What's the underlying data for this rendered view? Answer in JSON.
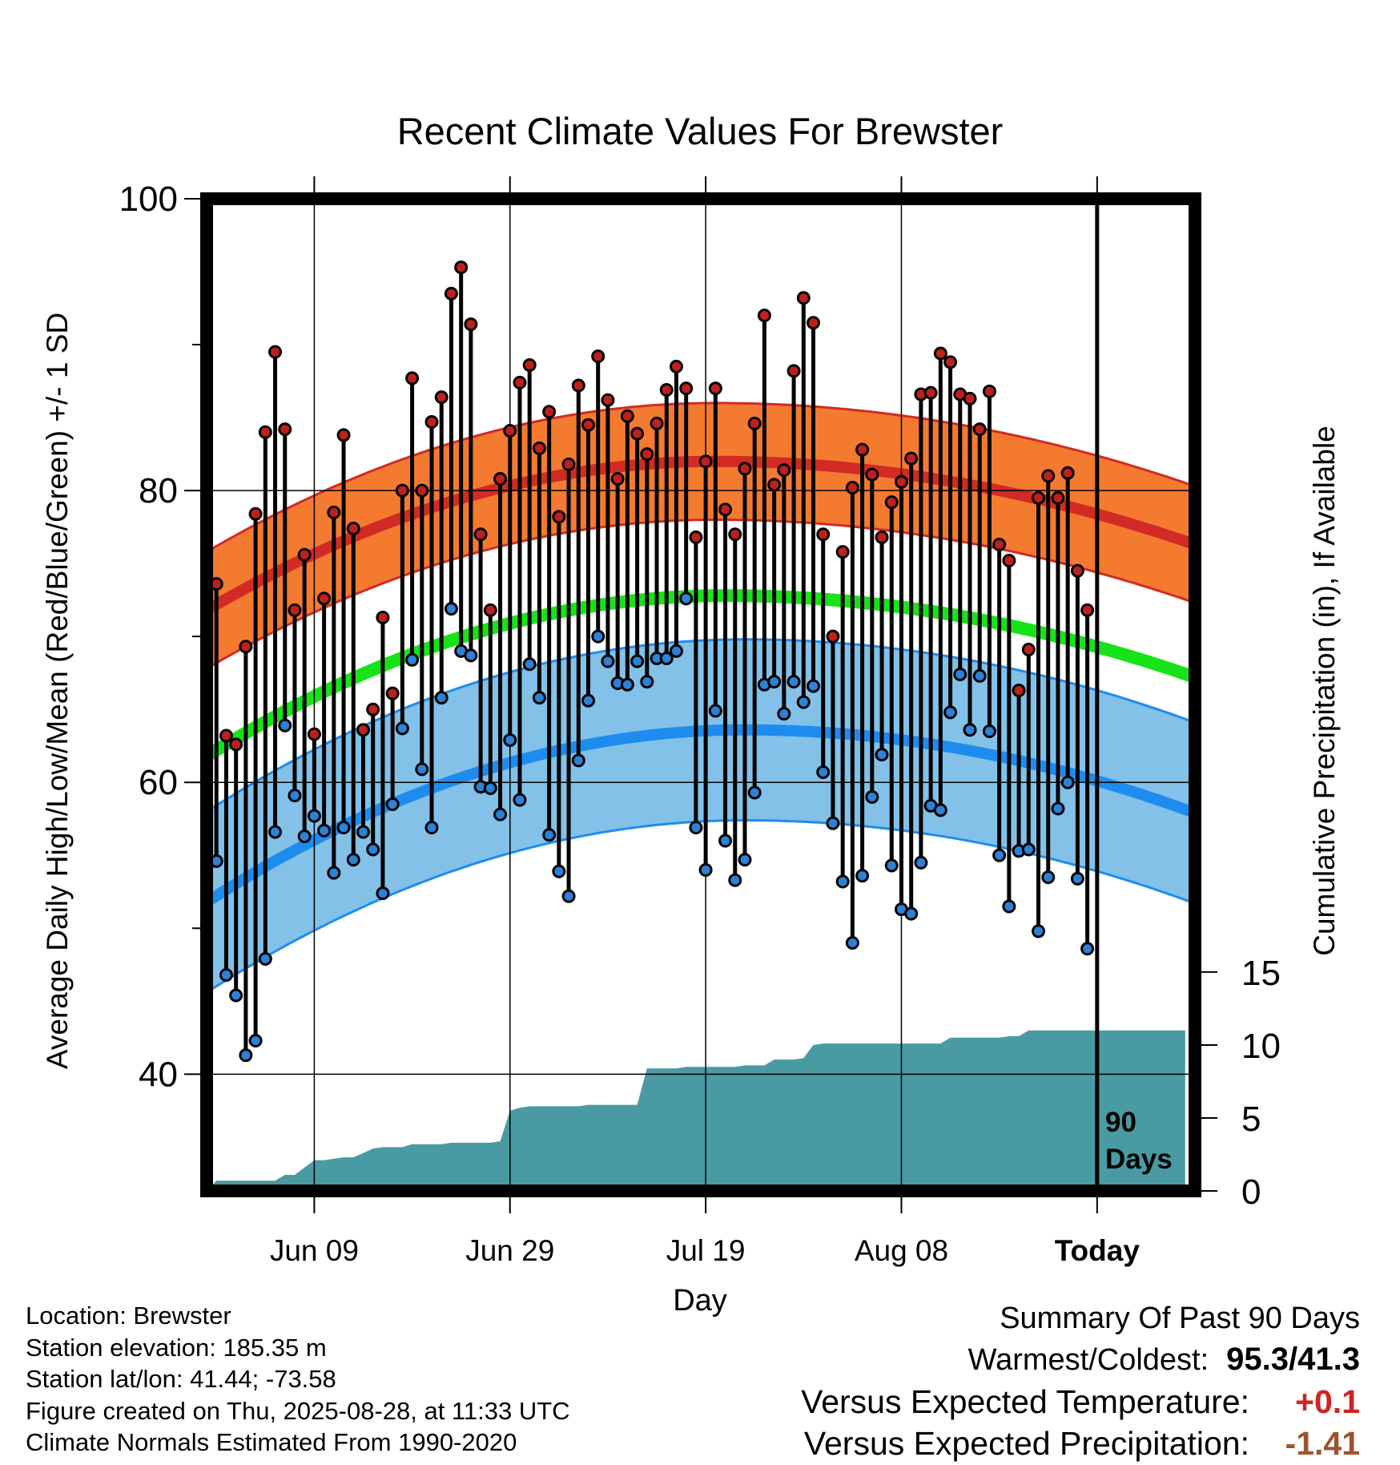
{
  "chart_data": {
    "type": "line",
    "title": "Recent Climate Values For Brewster",
    "xlabel": "Day",
    "ylabel": "Average Daily High/Low/Mean (Red/Blue/Green) +/- 1 SD",
    "y2label": "Cumulative Precipitation (in), If Available",
    "ylim": [
      32,
      100
    ],
    "y2lim": [
      0,
      68
    ],
    "yticks": [
      "40",
      "60",
      "80",
      "100"
    ],
    "y2ticks": [
      "0",
      "5",
      "10",
      "15"
    ],
    "xticks": [
      "Jun 09",
      "Jun 29",
      "Jul 19",
      "Aug 08",
      "Today"
    ],
    "xtick_days": [
      11,
      31,
      51,
      71,
      91
    ],
    "xlim": [
      0,
      101
    ],
    "grid": true,
    "marker_label": "90 Days",
    "colors": {
      "high_band": "#f47a30",
      "high_line": "#d22a24",
      "low_band": "#83c1e8",
      "low_line": "#1e8cef",
      "mean_line": "#18e318",
      "precip": "#4a9aa3",
      "high_dot": "#c0201c",
      "low_dot": "#2b82d6"
    },
    "normals": {
      "mean_high": {
        "day0": 71.8,
        "peak": 82.0,
        "peak_day": 52,
        "day101": 76.3
      },
      "high_sd": 4.0,
      "mean_low": {
        "day0": 51.8,
        "peak": 63.6,
        "peak_day": 55,
        "day101": 57.9
      },
      "low_sd": 6.2,
      "mean": {
        "day0": 61.8,
        "peak": 72.8,
        "peak_day": 53,
        "day101": 67.2
      }
    },
    "series": [
      {
        "name": "High",
        "values": [
          73.6,
          63.2,
          62.6,
          69.3,
          78.4,
          84.0,
          89.5,
          84.2,
          71.8,
          75.6,
          63.3,
          72.6,
          78.5,
          83.8,
          77.4,
          63.6,
          65.0,
          71.3,
          66.1,
          80.0,
          87.7,
          80.0,
          84.7,
          86.4,
          93.5,
          95.3,
          91.4,
          77.0,
          71.8,
          80.8,
          84.1,
          87.4,
          88.6,
          82.9,
          85.4,
          78.2,
          81.8,
          87.2,
          84.5,
          89.2,
          86.2,
          80.8,
          85.1,
          83.9,
          82.5,
          84.6,
          86.9,
          88.5,
          87.0,
          76.8,
          82.0,
          87.0,
          78.7,
          77.0,
          81.5,
          84.6,
          92.0,
          80.4,
          81.4,
          88.2,
          93.2,
          91.5,
          77.0,
          70.0,
          75.8,
          80.2,
          82.8,
          81.1,
          76.8,
          79.2,
          80.6,
          82.2,
          86.6,
          86.7,
          89.4,
          88.8,
          86.6,
          86.3,
          84.2,
          86.8,
          76.3,
          75.2,
          66.3,
          69.1,
          79.5,
          81.0,
          79.5,
          81.2,
          74.5,
          71.8
        ]
      },
      {
        "name": "Low",
        "values": [
          54.6,
          46.8,
          45.4,
          41.3,
          42.3,
          47.9,
          56.6,
          63.9,
          59.1,
          56.3,
          57.7,
          56.7,
          53.8,
          56.9,
          54.7,
          56.6,
          55.4,
          52.4,
          58.5,
          63.7,
          68.4,
          60.9,
          56.9,
          65.8,
          71.9,
          69.0,
          68.7,
          59.7,
          59.6,
          57.8,
          62.9,
          58.8,
          68.1,
          65.8,
          56.4,
          53.9,
          52.2,
          61.5,
          65.6,
          70.0,
          68.3,
          66.8,
          66.7,
          68.3,
          66.9,
          68.5,
          68.5,
          69.0,
          72.6,
          56.9,
          54.0,
          64.9,
          56.0,
          53.3,
          54.7,
          59.3,
          66.7,
          66.9,
          64.7,
          66.9,
          65.5,
          66.6,
          60.7,
          57.2,
          53.2,
          49.0,
          53.6,
          59.0,
          61.9,
          54.3,
          51.3,
          51.0,
          54.5,
          58.4,
          58.1,
          64.8,
          67.4,
          63.6,
          67.3,
          63.5,
          55.0,
          51.5,
          55.3,
          55.4,
          49.8,
          53.5,
          58.2,
          60.0,
          53.4,
          48.6
        ]
      },
      {
        "name": "Precipitation",
        "values": [
          0.0,
          0.7,
          0.7,
          0.7,
          0.7,
          0.7,
          0.7,
          0.7,
          1.1,
          1.1,
          1.6,
          2.1,
          2.1,
          2.2,
          2.3,
          2.3,
          2.6,
          2.9,
          3.0,
          3.0,
          3.0,
          3.2,
          3.2,
          3.2,
          3.2,
          3.3,
          3.3,
          3.3,
          3.3,
          3.3,
          3.4,
          5.5,
          5.7,
          5.8,
          5.8,
          5.8,
          5.8,
          5.8,
          5.8,
          5.9,
          5.9,
          5.9,
          5.9,
          5.9,
          5.9,
          8.4,
          8.4,
          8.4,
          8.4,
          8.5,
          8.5,
          8.5,
          8.5,
          8.5,
          8.5,
          8.6,
          8.6,
          8.6,
          9.0,
          9.0,
          9.0,
          9.1,
          10.0,
          10.1,
          10.1,
          10.1,
          10.1,
          10.1,
          10.1,
          10.1,
          10.1,
          10.1,
          10.1,
          10.1,
          10.1,
          10.1,
          10.5,
          10.5,
          10.5,
          10.5,
          10.5,
          10.5,
          10.6,
          10.6,
          11.0,
          11.0,
          11.0,
          11.0,
          11.0,
          11.0,
          11.0,
          11.0,
          11.0,
          11.0,
          11.0,
          11.0,
          11.0,
          11.0,
          11.0,
          11.0,
          11.0
        ]
      }
    ]
  },
  "footer": {
    "location": "Location: Brewster",
    "elevation": "Station elevation: 185.35 m",
    "latlon": "Station lat/lon: 41.44; -73.58",
    "created": "Figure created on Thu, 2025-08-28, at 11:33 UTC",
    "normals": "Climate Normals Estimated From 1990-2020"
  },
  "summary": {
    "title": "Summary Of Past 90 Days",
    "warm_cold_label": "Warmest/Coldest:",
    "warm_cold_value": "95.3/41.3",
    "temp_label": "Versus Expected Temperature:",
    "temp_value": "+0.1",
    "temp_color": "#d12222",
    "precip_label": "Versus Expected Precipitation:",
    "precip_value": "-1.41",
    "precip_color": "#a0522d"
  }
}
